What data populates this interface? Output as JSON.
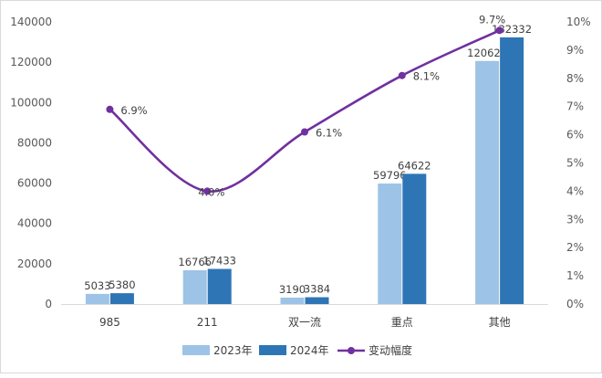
{
  "chart_data": {
    "type": "bar",
    "categories": [
      "985",
      "211",
      "双一流",
      "重点",
      "其他"
    ],
    "series": [
      {
        "name": "2023年",
        "type": "bar",
        "axis": "left",
        "color": "#9dc3e6",
        "values": [
          5033,
          16766,
          3190,
          59796,
          120623
        ]
      },
      {
        "name": "2024年",
        "type": "bar",
        "axis": "left",
        "color": "#2e75b6",
        "values": [
          5380,
          17433,
          3384,
          64622,
          132332
        ]
      },
      {
        "name": "变动幅度",
        "type": "line",
        "axis": "right",
        "color": "#7030a0",
        "values": [
          6.9,
          4.0,
          6.1,
          8.1,
          9.7
        ]
      }
    ],
    "data_labels": {
      "bar_2023": [
        "5033",
        "16766",
        "3190",
        "59796",
        "120623"
      ],
      "bar_2024": [
        "5380",
        "17433",
        "3384",
        "64622",
        "132332"
      ],
      "line": [
        "6.9%",
        "4.0%",
        "6.1%",
        "8.1%",
        "9.7%"
      ]
    },
    "ylim_left": [
      0,
      140000
    ],
    "ylim_right": [
      0,
      10
    ],
    "y_ticks_left": [
      "0",
      "20000",
      "40000",
      "60000",
      "80000",
      "100000",
      "120000",
      "140000"
    ],
    "y_ticks_right": [
      "0%",
      "1%",
      "2%",
      "3%",
      "4%",
      "5%",
      "6%",
      "7%",
      "8%",
      "9%",
      "10%"
    ],
    "legend": {
      "position": "bottom",
      "items": [
        "2023年",
        "2024年",
        "变动幅度"
      ]
    },
    "grid": false,
    "line_smooth": true
  }
}
